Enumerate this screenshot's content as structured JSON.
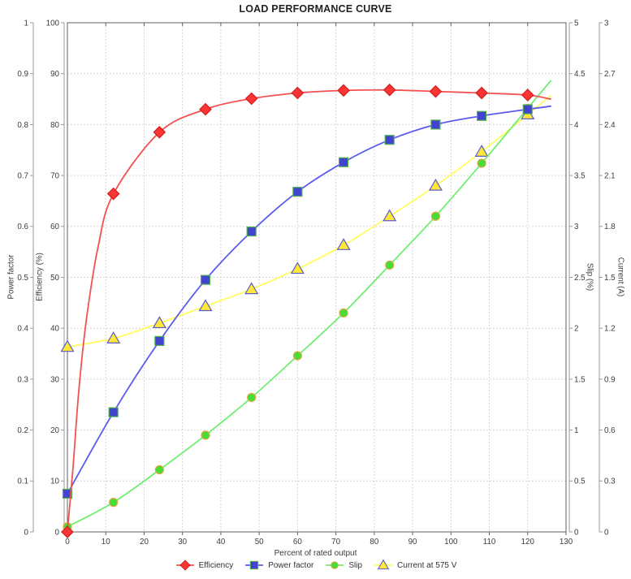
{
  "chart_data": {
    "type": "line",
    "title": "LOAD PERFORMANCE CURVE",
    "xlabel": "Percent of rated output",
    "x_range": [
      0,
      130
    ],
    "x_tick_labels": [
      "0",
      "10",
      "20",
      "30",
      "40",
      "50",
      "60",
      "70",
      "80",
      "90",
      "100",
      "110",
      "120",
      "130"
    ],
    "grid": true,
    "legend_position": "bottom",
    "x": [
      0,
      12,
      24,
      36,
      48,
      60,
      72,
      84,
      96,
      108,
      120
    ],
    "axes": [
      {
        "id": "power_factor",
        "label": "Power factor",
        "side": "left",
        "range": [
          0,
          1
        ],
        "tick_labels": [
          "0",
          "0.1",
          "0.2",
          "0.3",
          "0.4",
          "0.5",
          "0.6",
          "0.7",
          "0.8",
          "0.9",
          "1"
        ]
      },
      {
        "id": "efficiency",
        "label": "Efficiency (%)",
        "side": "left",
        "range": [
          0,
          100
        ],
        "tick_labels": [
          "0",
          "10",
          "20",
          "30",
          "40",
          "50",
          "60",
          "70",
          "80",
          "90",
          "100"
        ]
      },
      {
        "id": "slip",
        "label": "Slip (%)",
        "side": "right",
        "range": [
          0,
          5
        ],
        "tick_labels": [
          "0",
          "0.5",
          "1",
          "1.5",
          "2",
          "2.5",
          "3",
          "3.5",
          "4",
          "4.5",
          "5"
        ]
      },
      {
        "id": "current",
        "label": "Current (A)",
        "side": "right",
        "range": [
          0,
          3
        ],
        "tick_labels": [
          "0",
          "0.3",
          "0.6",
          "0.9",
          "1.2",
          "1.5",
          "1.8",
          "2.1",
          "2.4",
          "2.7",
          "3"
        ]
      }
    ],
    "series": [
      {
        "name": "Efficiency",
        "axis": "efficiency",
        "marker": "diamond",
        "line_color": "#f25252",
        "marker_fill": "#fb3434",
        "marker_stroke": "#cf2020",
        "values": [
          0,
          66.4,
          78.5,
          83.0,
          85.1,
          86.2,
          86.7,
          86.8,
          86.5,
          86.2,
          85.8
        ],
        "fit_lead_in": [
          [
            1.5,
            13
          ],
          [
            3,
            28
          ],
          [
            5,
            42
          ],
          [
            8,
            56
          ]
        ],
        "fit_extension": [
          126,
          85.0
        ]
      },
      {
        "name": "Power factor",
        "axis": "power_factor",
        "marker": "square",
        "line_color": "#5b5bf0",
        "marker_fill": "#4343cf",
        "marker_stroke": "#4db34d",
        "values": [
          0.075,
          0.235,
          0.375,
          0.495,
          0.59,
          0.668,
          0.726,
          0.77,
          0.8,
          0.817,
          0.83
        ],
        "fit_extension": [
          126,
          0.836
        ]
      },
      {
        "name": "Slip",
        "axis": "slip",
        "marker": "circle",
        "line_color": "#70ee70",
        "marker_fill": "#43df39",
        "marker_stroke": "#dfa73c",
        "values": [
          0.05,
          0.29,
          0.61,
          0.95,
          1.32,
          1.73,
          2.15,
          2.62,
          3.1,
          3.62,
          4.16
        ],
        "fit_extension": [
          126,
          4.43
        ]
      },
      {
        "name": "Current at 575 V",
        "axis": "current",
        "marker": "triangle",
        "line_color": "#ffff5e",
        "marker_fill": "#ffe838",
        "marker_stroke": "#5b5bd0",
        "values": [
          1.09,
          1.14,
          1.23,
          1.33,
          1.43,
          1.55,
          1.69,
          1.86,
          2.04,
          2.24,
          2.46
        ],
        "fit_extension": [
          126,
          2.57
        ]
      }
    ],
    "colors": {
      "grid": "#c9c9c9",
      "frame": "#5f5f5f",
      "axis_line": "#9a9a9a",
      "text": "#3c3c3c"
    }
  }
}
